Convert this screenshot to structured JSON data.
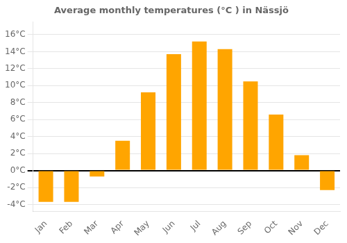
{
  "chart_data": {
    "type": "bar",
    "title": "Average monthly temperatures (°C ) in Nässjö",
    "categories": [
      "Jan",
      "Feb",
      "Mar",
      "Apr",
      "May",
      "Jun",
      "Jul",
      "Aug",
      "Sep",
      "Oct",
      "Nov",
      "Dec"
    ],
    "values": [
      -3.7,
      -3.7,
      -0.7,
      3.5,
      9.2,
      13.7,
      15.2,
      14.3,
      10.5,
      6.6,
      1.8,
      -2.3
    ],
    "color": "#FFA500",
    "ylim": [
      -4.8,
      17.5
    ],
    "yticks": [
      {
        "value": -4,
        "label": "-4°C"
      },
      {
        "value": -2,
        "label": "-2°C"
      },
      {
        "value": 0,
        "label": "0°C"
      },
      {
        "value": 2,
        "label": "2°C"
      },
      {
        "value": 4,
        "label": "4°C"
      },
      {
        "value": 6,
        "label": "6°C"
      },
      {
        "value": 8,
        "label": "8°C"
      },
      {
        "value": 10,
        "label": "10°C"
      },
      {
        "value": 12,
        "label": "12°C"
      },
      {
        "value": 14,
        "label": "14°C"
      },
      {
        "value": 16,
        "label": "16°C"
      }
    ],
    "grid": true
  }
}
